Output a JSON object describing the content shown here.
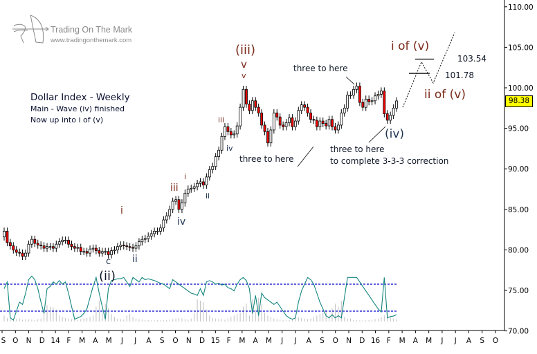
{
  "brand": {
    "name": "Trading On The Mark",
    "url": "www.tradingonthemark.com"
  },
  "notes": {
    "title": "Dollar Index - Weekly",
    "line1": "Main - Wave (iv) finished",
    "line2": "Now up into i of (v)"
  },
  "last_price_label": "98.38",
  "annotations": {
    "w3": "(iii)",
    "w3v_big": "v",
    "w3v_small": "v",
    "sub_iii_small": "iii",
    "sub_iv_small": "iv",
    "sub_i_small": "i",
    "sub_ii_small": "ii",
    "sub_iii": "iii",
    "sub_iv": "iv",
    "w_i": "i",
    "w_ii": "ii",
    "w_c": "c",
    "w2": "(ii)",
    "three1": "three to here",
    "three2": "three to here",
    "three3a": "three to here",
    "three3b": "to complete 3-3-3 correction",
    "w4": "(iv)",
    "i_of_v": "i of (v)",
    "ii_of_v": "ii of (v)",
    "lvl1": "103.54",
    "lvl2": "101.78"
  },
  "colors": {
    "up_candle": "#ffffff",
    "down_candle": "#ff0000",
    "oscillator": "#13857e",
    "volume": "#c0c0c0",
    "band_lines": "#0000cc",
    "price_tag": "#ffff00",
    "impulse_labels": "#7a2a1a",
    "corrective_labels": "#1e3350"
  },
  "chart_data": {
    "type": "candlestick",
    "title": "Dollar Index - Weekly",
    "interval": "weekly",
    "y_axis": {
      "ticks": [
        "110.00",
        "105.00",
        "100.00",
        "95.00",
        "90.00",
        "85.00",
        "80.00",
        "75.00",
        "70.00"
      ],
      "ylim": [
        70,
        110
      ],
      "position": "right"
    },
    "x_axis": {
      "ticks": [
        "S",
        "O",
        "N",
        "D",
        "14",
        "F",
        "M",
        "A",
        "M",
        "J",
        "J",
        "A",
        "S",
        "O",
        "N",
        "D",
        "15",
        "F",
        "M",
        "A",
        "M",
        "J",
        "J",
        "A",
        "S",
        "O",
        "N",
        "D",
        "16",
        "F",
        "M",
        "A",
        "M",
        "J",
        "J",
        "A",
        "S",
        "O"
      ]
    },
    "grid": false,
    "closes": [
      82.3,
      80.9,
      80.5,
      80.0,
      79.7,
      79.6,
      79.2,
      79.6,
      80.7,
      81.3,
      80.8,
      80.6,
      80.5,
      80.2,
      80.4,
      80.4,
      80.2,
      80.7,
      81.0,
      81.2,
      81.2,
      80.7,
      80.4,
      80.2,
      80.3,
      79.8,
      79.8,
      79.6,
      80.1,
      80.2,
      79.9,
      79.6,
      79.8,
      79.8,
      79.4,
      79.9,
      80.0,
      80.4,
      80.6,
      80.5,
      80.4,
      80.3,
      80.2,
      80.5,
      81.0,
      81.3,
      81.4,
      81.7,
      82.0,
      82.3,
      82.3,
      82.7,
      83.7,
      84.2,
      85.0,
      86.0,
      86.2,
      85.0,
      85.8,
      87.0,
      87.5,
      87.6,
      87.8,
      88.2,
      88.4,
      88.0,
      89.0,
      89.9,
      90.3,
      91.5,
      92.3,
      94.0,
      95.2,
      94.6,
      94.2,
      94.3,
      95.3,
      97.6,
      99.8,
      98.0,
      97.2,
      98.4,
      97.6,
      96.9,
      95.4,
      94.6,
      93.2,
      94.8,
      96.9,
      96.4,
      95.4,
      95.2,
      95.7,
      96.3,
      95.2,
      95.9,
      97.2,
      97.9,
      97.6,
      96.9,
      96.1,
      96.0,
      95.2,
      95.9,
      95.6,
      95.3,
      96.1,
      95.2,
      94.8,
      95.4,
      96.9,
      97.5,
      99.1,
      99.1,
      99.8,
      100.2,
      98.2,
      97.6,
      98.6,
      98.3,
      98.4,
      99.0,
      99.2,
      99.6,
      96.8,
      96.0,
      96.6,
      97.5,
      98.38
    ],
    "first_open": 81.6,
    "oscillator": {
      "values": [
        70,
        85,
        5,
        0,
        20,
        40,
        35,
        60,
        90,
        98,
        90,
        70,
        40,
        15,
        70,
        75,
        85,
        80,
        88,
        80,
        85,
        60,
        30,
        2,
        5,
        8,
        15,
        25,
        50,
        75,
        95,
        60,
        30,
        2,
        70,
        88,
        90,
        92,
        92,
        95,
        85,
        75,
        95,
        90,
        85,
        95,
        90,
        92,
        90,
        88,
        85,
        82,
        80,
        75,
        70,
        90,
        85,
        80,
        75,
        70,
        65,
        60,
        58,
        55,
        70,
        55,
        85,
        88,
        85,
        80,
        82,
        78,
        80,
        72,
        70,
        65,
        80,
        90,
        95,
        88,
        70,
        15,
        55,
        10,
        60,
        50,
        45,
        40,
        35,
        40,
        30,
        20,
        10,
        5,
        2,
        5,
        40,
        65,
        80,
        95,
        90,
        80,
        60,
        40,
        25,
        10,
        5,
        12,
        5,
        10,
        5,
        50,
        95,
        95,
        95,
        95,
        85,
        75,
        65,
        55,
        45,
        35,
        25,
        18,
        95,
        5,
        8,
        9,
        12
      ],
      "upper_band": 80,
      "lower_band": 20
    },
    "volume": [
      20,
      12,
      8,
      5,
      8,
      10,
      6,
      8,
      7,
      6,
      5,
      8,
      10,
      30,
      55,
      50,
      48,
      40,
      20,
      15,
      12,
      10,
      8,
      6,
      5,
      8,
      10,
      12,
      15,
      20,
      50,
      70,
      30,
      60,
      45,
      25,
      15,
      10,
      8,
      6,
      20,
      25,
      15,
      10,
      8,
      6,
      5,
      5,
      4,
      4,
      4,
      4,
      4,
      5,
      6,
      8,
      10,
      12,
      10,
      8,
      6,
      10,
      30,
      75,
      70,
      65,
      40,
      20,
      12,
      10,
      8,
      8,
      6,
      10,
      15,
      20,
      25,
      30,
      50,
      60,
      20,
      75,
      40,
      80,
      60,
      30,
      20,
      15,
      10,
      8,
      6,
      5,
      4,
      5,
      10,
      15,
      15,
      12,
      10,
      8,
      10,
      15,
      20,
      25,
      30,
      40,
      20,
      45,
      60,
      50,
      70,
      15,
      10,
      10,
      5,
      4,
      4,
      4,
      4,
      5,
      6,
      8,
      10,
      15,
      20,
      30,
      15,
      10,
      8
    ],
    "projection": {
      "levels": [
        103.54,
        101.78
      ],
      "path_prices": [
        97.6,
        103.2,
        100.6,
        106.8
      ]
    }
  }
}
